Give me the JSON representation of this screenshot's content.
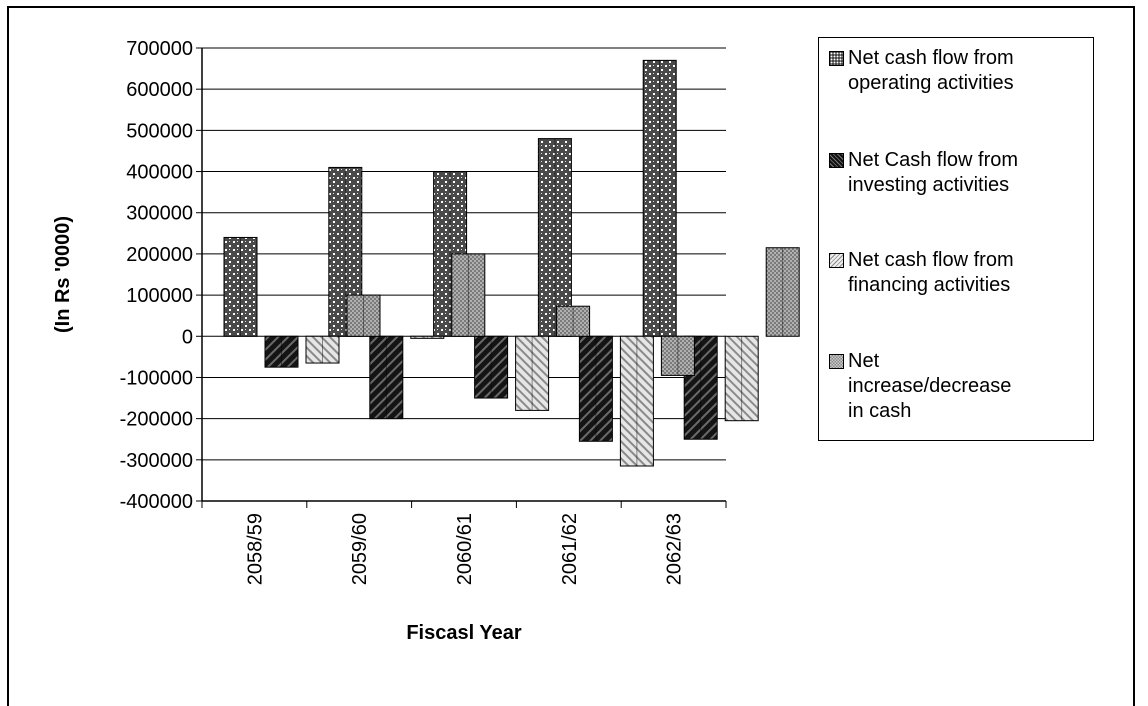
{
  "chart_data": {
    "type": "bar",
    "title": "",
    "xlabel": "Fiscasl Year",
    "ylabel": "(In Rs '0000)",
    "ylim": [
      -400000,
      700000
    ],
    "ytick_step": 100000,
    "yticks": [
      "700000",
      "600000",
      "500000",
      "400000",
      "300000",
      "200000",
      "100000",
      "0",
      "-100000",
      "-200000",
      "-300000",
      "-400000"
    ],
    "categories": [
      "2058/59",
      "2059/60",
      "2060/61",
      "2061/62",
      "2062/63"
    ],
    "grid": true,
    "legend_position": "right",
    "series": [
      {
        "name": "Net cash flow from operating activities",
        "values": [
          240000,
          410000,
          400000,
          480000,
          670000
        ],
        "color": "#5a5a5a",
        "pattern": "dots"
      },
      {
        "name": "Net Cash flow from investing activities",
        "values": [
          -75000,
          -200000,
          -150000,
          -255000,
          -250000
        ],
        "color": "#1e1e1e",
        "pattern": "dark-diagonal"
      },
      {
        "name": "Net cash flow from financing activities",
        "values": [
          -65000,
          -5000,
          -180000,
          -315000,
          -205000
        ],
        "color": "#d8d8d8",
        "pattern": "light-diagonal"
      },
      {
        "name": "Net increase/decrease in cash",
        "values": [
          100000,
          200000,
          73000,
          -95000,
          215000
        ],
        "color": "#9a9a9a",
        "pattern": "grid"
      }
    ]
  },
  "legend": {
    "items": [
      {
        "label_lines": [
          "Net cash flow from",
          "operating activities"
        ]
      },
      {
        "label_lines": [
          "Net Cash flow from",
          "investing activities"
        ]
      },
      {
        "label_lines": [
          "Net cash flow from",
          "financing activities"
        ]
      },
      {
        "label_lines": [
          "Net",
          "increase/decrease",
          "in cash"
        ]
      }
    ]
  }
}
